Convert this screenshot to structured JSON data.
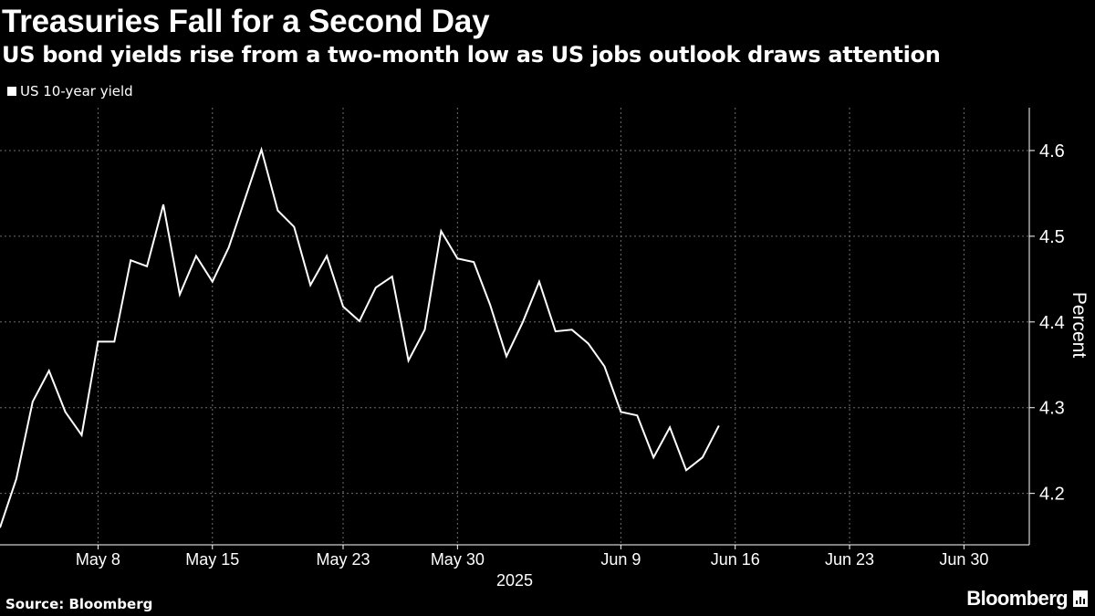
{
  "header": {
    "title": "Treasuries Fall for a Second Day",
    "subtitle": "US bond yields rise from a two-month low as US jobs outlook draws attention"
  },
  "footer": {
    "source": "Source: Bloomberg",
    "brand": "Bloomberg",
    "brand_icon": "bloomberg-terminal-icon"
  },
  "colors": {
    "background": "#000000",
    "line": "#ffffff",
    "grid": "#6e6e6e"
  },
  "chart_data": {
    "type": "line",
    "title": "Treasuries Fall for a Second Day",
    "legend": [
      "US 10-year yield"
    ],
    "ylabel": "Percent",
    "xlabel": "2025",
    "ylim": [
      4.14,
      4.65
    ],
    "yticks": [
      4.2,
      4.3,
      4.4,
      4.5,
      4.6
    ],
    "xlim": [
      "2025-05-02",
      "2025-07-04"
    ],
    "xticks": [
      {
        "label": "May 8",
        "date": "2025-05-08"
      },
      {
        "label": "May 15",
        "date": "2025-05-15"
      },
      {
        "label": "May 23",
        "date": "2025-05-23"
      },
      {
        "label": "May 30",
        "date": "2025-05-30"
      },
      {
        "label": "Jun 9",
        "date": "2025-06-09"
      },
      {
        "label": "Jun 16",
        "date": "2025-06-16"
      },
      {
        "label": "Jun 23",
        "date": "2025-06-23"
      },
      {
        "label": "Jun 30",
        "date": "2025-06-30"
      }
    ],
    "year_label": "2025",
    "series": [
      {
        "name": "US 10-year yield",
        "points": [
          [
            "2025-05-02",
            4.16
          ],
          [
            "2025-05-03",
            4.217
          ],
          [
            "2025-05-04",
            4.307
          ],
          [
            "2025-05-05",
            4.343
          ],
          [
            "2025-05-06",
            4.295
          ],
          [
            "2025-05-07",
            4.268
          ],
          [
            "2025-05-08",
            4.377
          ],
          [
            "2025-05-09",
            4.377
          ],
          [
            "2025-05-10",
            4.472
          ],
          [
            "2025-05-11",
            4.465
          ],
          [
            "2025-05-12",
            4.537
          ],
          [
            "2025-05-13",
            4.432
          ],
          [
            "2025-05-14",
            4.477
          ],
          [
            "2025-05-15",
            4.447
          ],
          [
            "2025-05-16",
            4.487
          ],
          [
            "2025-05-18",
            4.601
          ],
          [
            "2025-05-19",
            4.53
          ],
          [
            "2025-05-20",
            4.511
          ],
          [
            "2025-05-21",
            4.443
          ],
          [
            "2025-05-22",
            4.477
          ],
          [
            "2025-05-23",
            4.418
          ],
          [
            "2025-05-24",
            4.401
          ],
          [
            "2025-05-25",
            4.44
          ],
          [
            "2025-05-26",
            4.453
          ],
          [
            "2025-05-27",
            4.355
          ],
          [
            "2025-05-28",
            4.391
          ],
          [
            "2025-05-29",
            4.506
          ],
          [
            "2025-05-30",
            4.474
          ],
          [
            "2025-05-31",
            4.47
          ],
          [
            "2025-06-01",
            4.42
          ],
          [
            "2025-06-02",
            4.36
          ],
          [
            "2025-06-03",
            4.4
          ],
          [
            "2025-06-04",
            4.447
          ],
          [
            "2025-06-05",
            4.389
          ],
          [
            "2025-06-06",
            4.391
          ],
          [
            "2025-06-07",
            4.375
          ],
          [
            "2025-06-08",
            4.348
          ],
          [
            "2025-06-09",
            4.295
          ],
          [
            "2025-06-10",
            4.291
          ],
          [
            "2025-06-11",
            4.242
          ],
          [
            "2025-06-12",
            4.277
          ],
          [
            "2025-06-13",
            4.227
          ],
          [
            "2025-06-14",
            4.242
          ],
          [
            "2025-06-15",
            4.279
          ]
        ]
      }
    ]
  }
}
